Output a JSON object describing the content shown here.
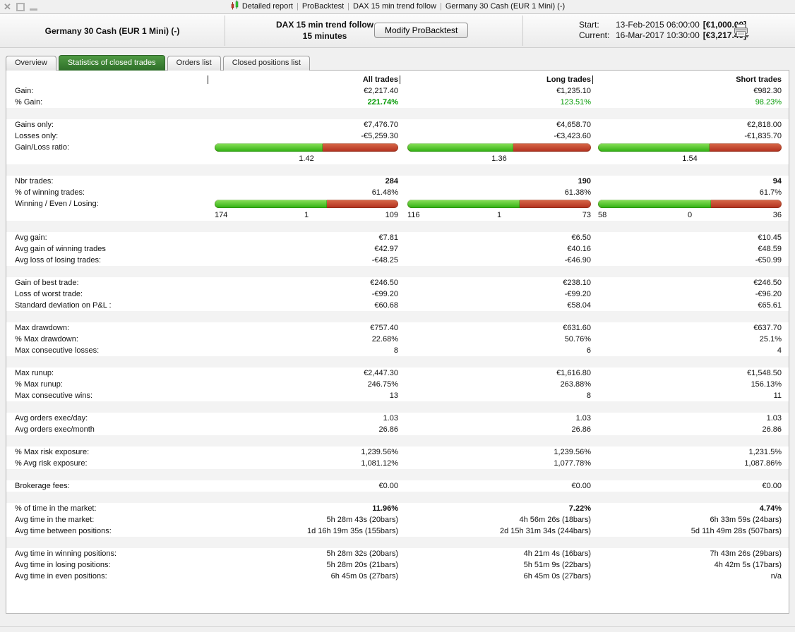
{
  "window": {
    "title_segments": [
      "Detailed report",
      "ProBacktest",
      "DAX 15 min trend follow",
      "Germany 30 Cash (EUR 1 Mini) (-)"
    ],
    "title_separator": "|",
    "close_glyph": "✕"
  },
  "header": {
    "instrument": "Germany 30 Cash (EUR 1 Mini) (-)",
    "strategy_name": "DAX 15 min trend follow",
    "timeframe": "15 minutes",
    "modify_button": "Modify ProBacktest",
    "start_label": "Start:",
    "start_datetime": "13-Feb-2015 06:00:00",
    "start_capital": "[€1,000.00]",
    "current_label": "Current:",
    "current_datetime": "16-Mar-2017 10:30:00",
    "current_capital": "[€3,217.40]"
  },
  "tabs": [
    {
      "label": "Overview",
      "active": false
    },
    {
      "label": "Statistics of closed trades",
      "active": true
    },
    {
      "label": "Orders list",
      "active": false
    },
    {
      "label": "Closed positions list",
      "active": false
    }
  ],
  "colors": {
    "positive_text": "#009900",
    "bar_green_top": "#8ce25c",
    "bar_green_bottom": "#2fae10",
    "bar_red_top": "#d96a4a",
    "bar_red_bottom": "#b02f1d",
    "active_tab_top": "#4f9a43",
    "active_tab_bottom": "#2e6e29"
  },
  "table": {
    "columns": [
      "All trades",
      "Long trades",
      "Short trades"
    ],
    "sections": [
      {
        "rows": [
          {
            "t": "head"
          },
          {
            "l": "Gain:",
            "v": [
              "€2,217.40",
              "€1,235.10",
              "€982.30"
            ]
          },
          {
            "l": "% Gain:",
            "v": [
              "221.74%",
              "123.51%",
              "98.23%"
            ],
            "vc": [
              "green b",
              "green",
              "green"
            ]
          }
        ]
      },
      {
        "rows": [
          {
            "l": "Gains only:",
            "v": [
              "€7,476.70",
              "€4,658.70",
              "€2,818.00"
            ]
          },
          {
            "l": "Losses only:",
            "v": [
              "-€5,259.30",
              "-€3,423.60",
              "-€1,835.70"
            ]
          },
          {
            "t": "ratio",
            "l": "Gain/Loss ratio:",
            "bars": [
              {
                "green_pct": 58.7,
                "value": "1.42"
              },
              {
                "green_pct": 57.6,
                "value": "1.36"
              },
              {
                "green_pct": 60.6,
                "value": "1.54"
              }
            ]
          }
        ]
      },
      {
        "rows": [
          {
            "l": "Nbr trades:",
            "v": [
              "284",
              "190",
              "94"
            ],
            "vc": [
              "b",
              "b",
              "b"
            ]
          },
          {
            "l": "% of winning trades:",
            "v": [
              "61.48%",
              "61.38%",
              "61.7%"
            ]
          },
          {
            "t": "wel",
            "l": "Winning / Even / Losing:",
            "bars": [
              {
                "green_pct": 61.3,
                "winning": "174",
                "even": "1",
                "losing": "109"
              },
              {
                "green_pct": 61.1,
                "winning": "116",
                "even": "1",
                "losing": "73"
              },
              {
                "green_pct": 61.7,
                "winning": "58",
                "even": "0",
                "losing": "36"
              }
            ]
          }
        ]
      },
      {
        "rows": [
          {
            "l": "Avg gain:",
            "v": [
              "€7.81",
              "€6.50",
              "€10.45"
            ]
          },
          {
            "l": "Avg gain of winning trades",
            "v": [
              "€42.97",
              "€40.16",
              "€48.59"
            ]
          },
          {
            "l": "Avg loss of losing trades:",
            "v": [
              "-€48.25",
              "-€46.90",
              "-€50.99"
            ]
          }
        ]
      },
      {
        "rows": [
          {
            "l": "Gain of best trade:",
            "v": [
              "€246.50",
              "€238.10",
              "€246.50"
            ]
          },
          {
            "l": "Loss of worst trade:",
            "v": [
              "-€99.20",
              "-€99.20",
              "-€96.20"
            ]
          },
          {
            "l": "Standard deviation on P&L :",
            "v": [
              "€60.68",
              "€58.04",
              "€65.61"
            ]
          }
        ]
      },
      {
        "rows": [
          {
            "l": "Max drawdown:",
            "v": [
              "€757.40",
              "€631.60",
              "€637.70"
            ]
          },
          {
            "l": "% Max drawdown:",
            "v": [
              "22.68%",
              "50.76%",
              "25.1%"
            ]
          },
          {
            "l": "Max consecutive losses:",
            "v": [
              "8",
              "6",
              "4"
            ]
          }
        ]
      },
      {
        "rows": [
          {
            "l": "Max runup:",
            "v": [
              "€2,447.30",
              "€1,616.80",
              "€1,548.50"
            ]
          },
          {
            "l": "% Max runup:",
            "v": [
              "246.75%",
              "263.88%",
              "156.13%"
            ]
          },
          {
            "l": "Max consecutive wins:",
            "v": [
              "13",
              "8",
              "11"
            ]
          }
        ]
      },
      {
        "rows": [
          {
            "l": "Avg orders exec/day:",
            "v": [
              "1.03",
              "1.03",
              "1.03"
            ]
          },
          {
            "l": "Avg orders exec/month",
            "v": [
              "26.86",
              "26.86",
              "26.86"
            ]
          }
        ]
      },
      {
        "rows": [
          {
            "l": "% Max risk exposure:",
            "v": [
              "1,239.56%",
              "1,239.56%",
              "1,231.5%"
            ]
          },
          {
            "l": "% Avg risk exposure:",
            "v": [
              "1,081.12%",
              "1,077.78%",
              "1,087.86%"
            ]
          }
        ]
      },
      {
        "rows": [
          {
            "l": "Brokerage fees:",
            "v": [
              "€0.00",
              "€0.00",
              "€0.00"
            ]
          }
        ]
      },
      {
        "rows": [
          {
            "l": "% of time in the market:",
            "v": [
              "11.96%",
              "7.22%",
              "4.74%"
            ],
            "vc": [
              "b",
              "b",
              "b"
            ]
          },
          {
            "l": "Avg time in the market:",
            "v": [
              "5h 28m 43s (20bars)",
              "4h 56m 26s (18bars)",
              "6h 33m 59s (24bars)"
            ]
          },
          {
            "l": "Avg time between positions:",
            "v": [
              "1d 16h 19m 35s (155bars)",
              "2d 15h 31m 34s (244bars)",
              "5d 11h 49m 28s (507bars)"
            ]
          }
        ]
      },
      {
        "rows": [
          {
            "l": "Avg time in winning positions:",
            "v": [
              "5h 28m 32s (20bars)",
              "4h 21m 4s (16bars)",
              "7h 43m 26s (29bars)"
            ]
          },
          {
            "l": "Avg time in losing positions:",
            "v": [
              "5h 28m 20s (21bars)",
              "5h 51m 9s (22bars)",
              "4h 42m 5s (17bars)"
            ]
          },
          {
            "l": "Avg time in even positions:",
            "v": [
              "6h 45m 0s (27bars)",
              "6h 45m 0s (27bars)",
              "n/a"
            ]
          }
        ]
      }
    ]
  }
}
